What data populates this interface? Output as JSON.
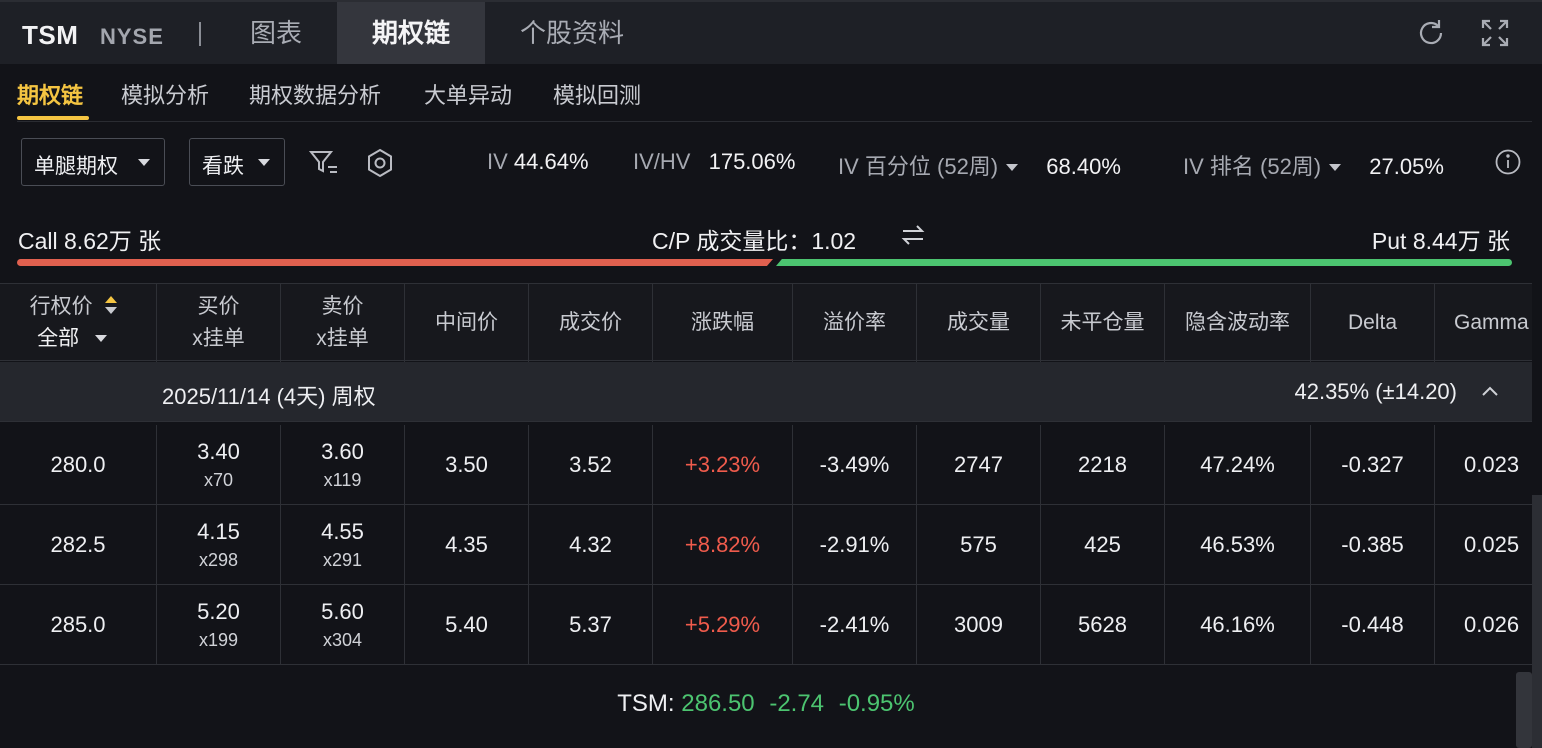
{
  "header": {
    "ticker": "TSM",
    "exchange": "NYSE",
    "tabs": [
      {
        "label": "图表",
        "active": false
      },
      {
        "label": "期权链",
        "active": true
      },
      {
        "label": "个股资料",
        "active": false
      }
    ],
    "icons": [
      "refresh-icon",
      "fullscreen-icon"
    ]
  },
  "subtabs": [
    {
      "label": "期权链",
      "active": true
    },
    {
      "label": "模拟分析",
      "active": false
    },
    {
      "label": "期权数据分析",
      "active": false
    },
    {
      "label": "大单异动",
      "active": false
    },
    {
      "label": "模拟回测",
      "active": false
    }
  ],
  "filters": {
    "strategy": "单腿期权",
    "direction": "看跌",
    "icons": [
      "filter-icon",
      "settings-icon",
      "info-icon"
    ]
  },
  "stats": {
    "iv_label": "IV",
    "iv_value": "44.64%",
    "ivhv_label": "IV/HV",
    "ivhv_value": "175.06%",
    "ivpct_label": "IV 百分位 (52周)",
    "ivpct_value": "68.40%",
    "ivrank_label": "IV 排名 (52周)",
    "ivrank_value": "27.05%"
  },
  "callput": {
    "call_text": "Call 8.62万 张",
    "ratio_text": "C/P 成交量比：1.02",
    "put_text": "Put 8.44万 张",
    "call_share": 0.505,
    "colors": {
      "call": "#e0604f",
      "put": "#4cc470"
    }
  },
  "table": {
    "headers": {
      "strike": "行权价",
      "strike_filter": "全部",
      "bid_1": "买价",
      "bid_2": "x挂单",
      "ask_1": "卖价",
      "ask_2": "x挂单",
      "mid": "中间价",
      "last": "成交价",
      "change": "涨跌幅",
      "premium": "溢价率",
      "volume": "成交量",
      "oi": "未平仓量",
      "iv": "隐含波动率",
      "delta": "Delta",
      "gamma": "Gamma"
    },
    "group": {
      "label": "2025/11/14 (4天) 周权",
      "iv_range": "42.35%  (±14.20)"
    },
    "rows": [
      {
        "strike": "280.0",
        "bid": "3.40",
        "bid_size": "x70",
        "ask": "3.60",
        "ask_size": "x119",
        "mid": "3.50",
        "last": "3.52",
        "change": "+3.23%",
        "premium": "-3.49%",
        "volume": "2747",
        "oi": "2218",
        "iv": "47.24%",
        "delta": "-0.327",
        "gamma": "0.023"
      },
      {
        "strike": "282.5",
        "bid": "4.15",
        "bid_size": "x298",
        "ask": "4.55",
        "ask_size": "x291",
        "mid": "4.35",
        "last": "4.32",
        "change": "+8.82%",
        "premium": "-2.91%",
        "volume": "575",
        "oi": "425",
        "iv": "46.53%",
        "delta": "-0.385",
        "gamma": "0.025"
      },
      {
        "strike": "285.0",
        "bid": "5.20",
        "bid_size": "x199",
        "ask": "5.60",
        "ask_size": "x304",
        "mid": "5.40",
        "last": "5.37",
        "change": "+5.29%",
        "premium": "-2.41%",
        "volume": "3009",
        "oi": "5628",
        "iv": "46.16%",
        "delta": "-0.448",
        "gamma": "0.026"
      }
    ]
  },
  "footer": {
    "symbol": "TSM:",
    "price": "286.50",
    "change": "-2.74",
    "change_pct": "-0.95%"
  }
}
